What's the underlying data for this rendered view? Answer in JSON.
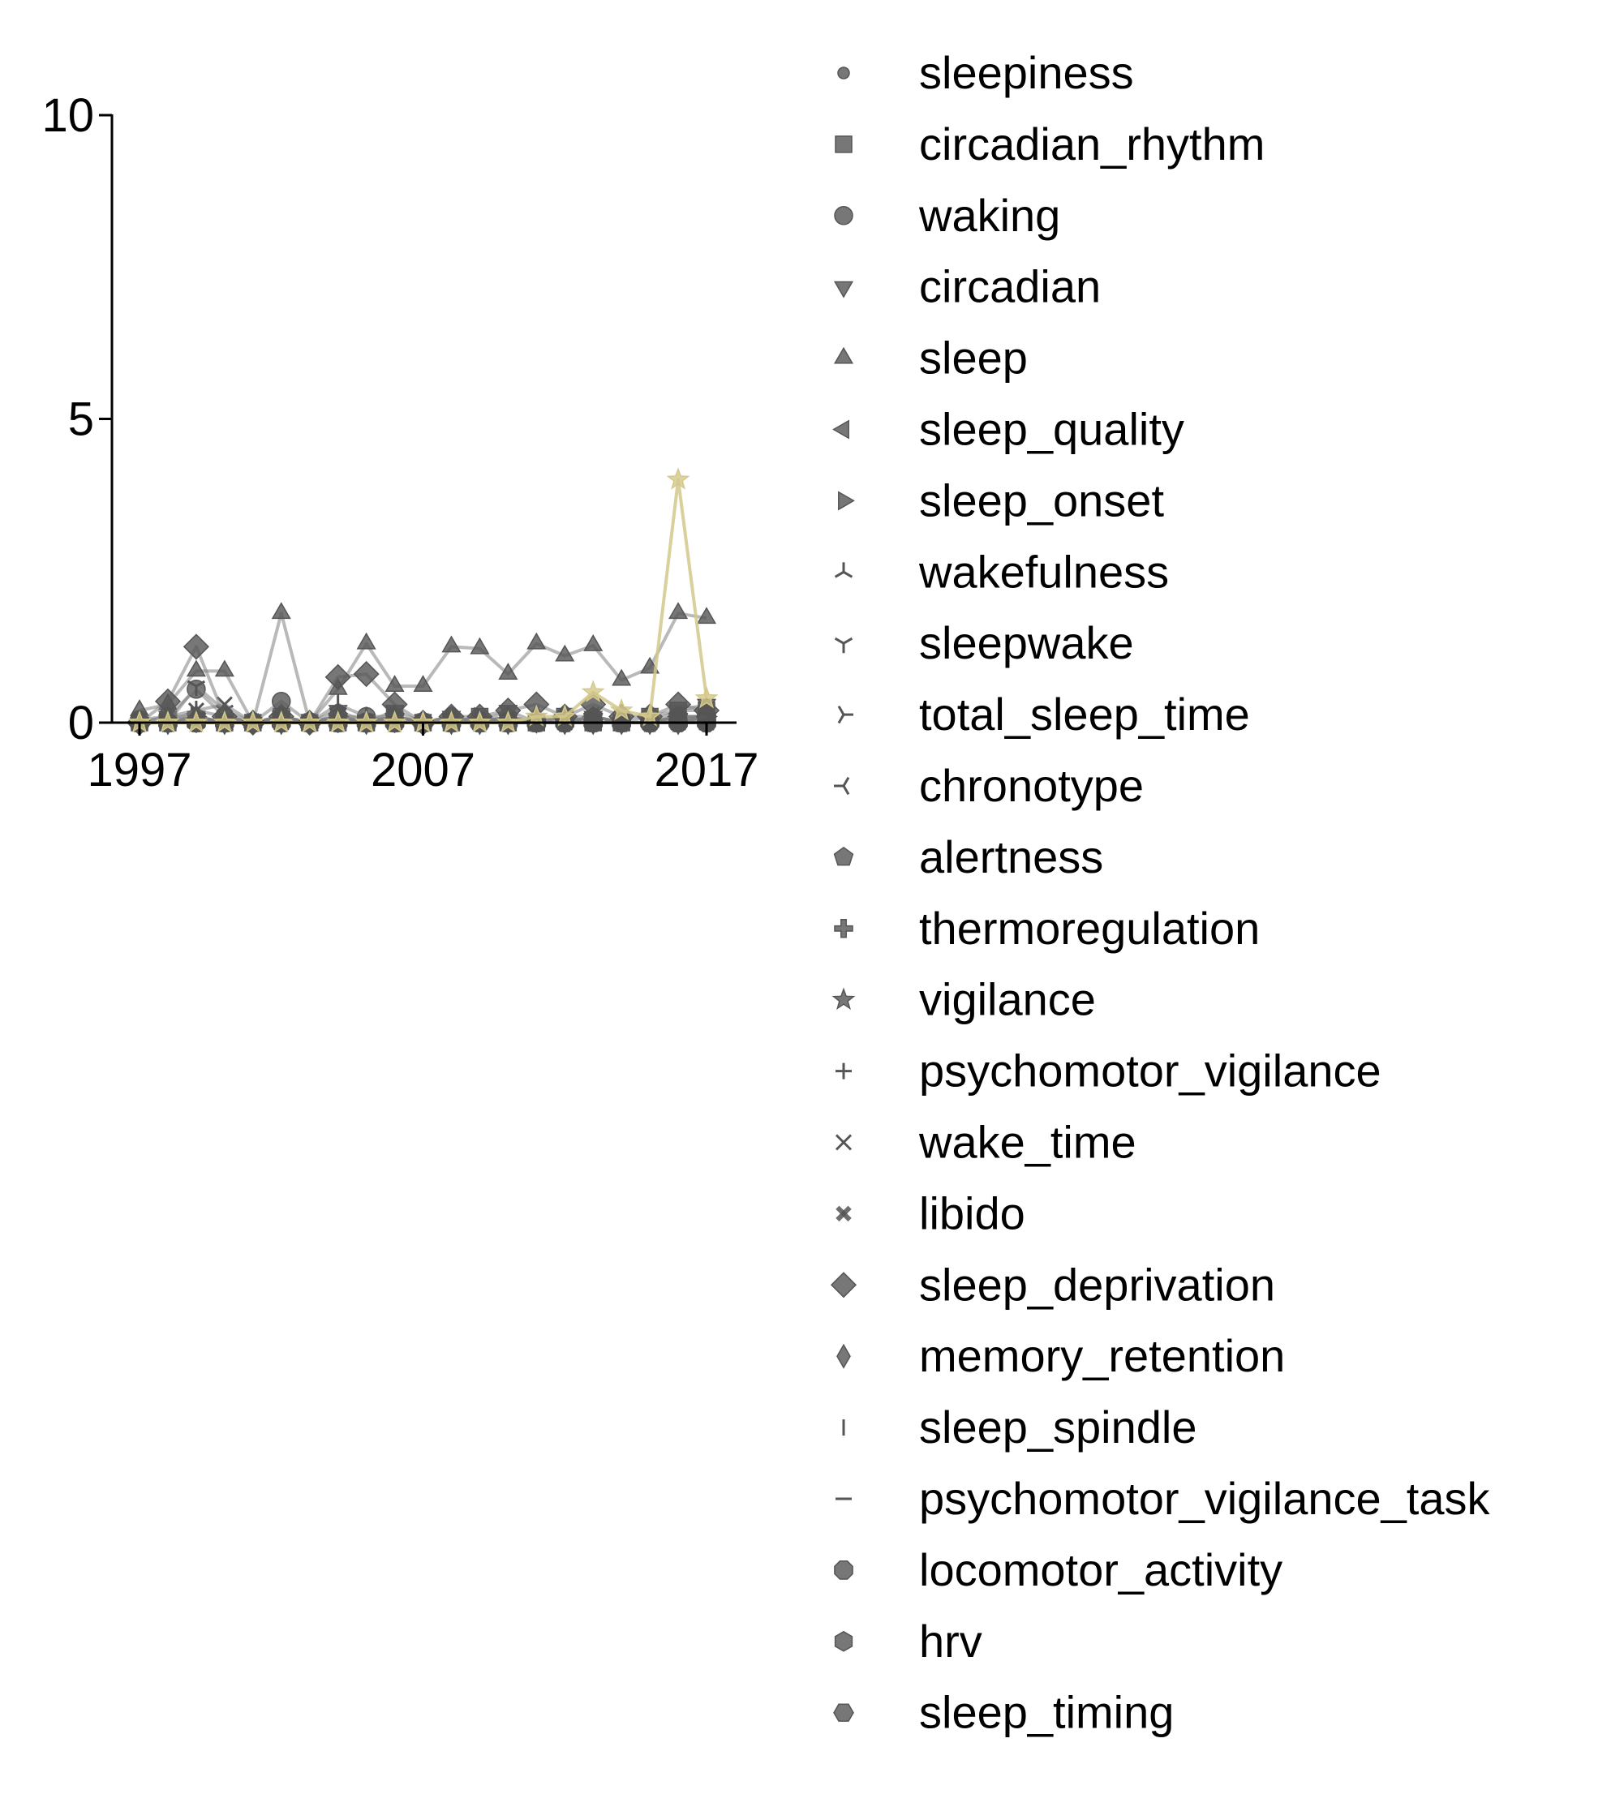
{
  "chart_data": {
    "type": "line",
    "title": "",
    "xlabel": "",
    "ylabel": "",
    "xlim": [
      1996,
      2018
    ],
    "ylim": [
      0,
      10
    ],
    "xticks": [
      1997,
      2007,
      2017
    ],
    "yticks": [
      0,
      5,
      10
    ],
    "grid": false,
    "legend_position": "right",
    "base_color": "#808080",
    "highlight_color": "#d4c88a",
    "years": [
      1997,
      1998,
      1999,
      2000,
      2001,
      2002,
      2003,
      2004,
      2005,
      2006,
      2007,
      2008,
      2009,
      2010,
      2011,
      2012,
      2013,
      2014,
      2015,
      2016,
      2017
    ],
    "series": [
      {
        "name": "sleepiness",
        "marker": "point",
        "values": [
          0,
          0,
          0.1,
          0,
          0,
          0,
          0,
          0.1,
          0,
          0,
          0,
          0,
          0,
          0.1,
          0,
          0,
          0.1,
          0,
          0,
          0,
          0.1
        ]
      },
      {
        "name": "circadian_rhythm",
        "marker": "square",
        "values": [
          0,
          0,
          0.05,
          0,
          0,
          0.1,
          0,
          0,
          0,
          0.1,
          0,
          0,
          0.1,
          0,
          0,
          0.1,
          0,
          0,
          0.1,
          0.2,
          0.2
        ]
      },
      {
        "name": "waking",
        "marker": "circle",
        "values": [
          0.05,
          0.1,
          0.55,
          0.1,
          0,
          0.35,
          0,
          0.1,
          0.1,
          0,
          0,
          0,
          0,
          0,
          0,
          0,
          0,
          0,
          0,
          0.05,
          0.1
        ]
      },
      {
        "name": "circadian",
        "marker": "triangle_down",
        "values": [
          0,
          0.1,
          0.1,
          0,
          0,
          0.1,
          0,
          0.2,
          0,
          0.2,
          0,
          0.1,
          0,
          0.2,
          0,
          0,
          0.1,
          0,
          0,
          0.2,
          0.3
        ]
      },
      {
        "name": "sleep",
        "marker": "triangle_up",
        "values": [
          0.2,
          0.3,
          0.85,
          0.85,
          0,
          1.8,
          0,
          0.55,
          1.3,
          0.6,
          0.6,
          1.25,
          1.22,
          0.8,
          1.3,
          1.1,
          1.27,
          0.7,
          0.9,
          1.8,
          1.72
        ]
      },
      {
        "name": "sleep_quality",
        "marker": "triangle_left",
        "values": [
          0,
          0,
          0,
          0,
          0,
          0,
          0,
          0,
          0,
          0,
          0,
          0,
          0,
          0,
          0,
          0,
          0.1,
          0,
          0,
          0.1,
          0.1
        ]
      },
      {
        "name": "sleep_onset",
        "marker": "triangle_right",
        "values": [
          0,
          0,
          0.1,
          0,
          0,
          0,
          0,
          0.1,
          0,
          0,
          0,
          0,
          0.1,
          0,
          0,
          0,
          0,
          0,
          0,
          0,
          0.1
        ]
      },
      {
        "name": "wakefulness",
        "marker": "tri_down",
        "values": [
          0,
          0.1,
          0.2,
          0.1,
          0,
          0.1,
          0,
          0.3,
          0.1,
          0.1,
          0,
          0,
          0,
          0.1,
          0,
          0,
          0.1,
          0,
          0,
          0.1,
          0.1
        ]
      },
      {
        "name": "sleepwake",
        "marker": "tri_up",
        "values": [
          0,
          0,
          0.6,
          0.2,
          0,
          0,
          0,
          0,
          0,
          0.1,
          0,
          0,
          0,
          0,
          0,
          0,
          0,
          0,
          0,
          0.1,
          0
        ]
      },
      {
        "name": "total_sleep_time",
        "marker": "tri_left",
        "values": [
          0,
          0,
          0,
          0,
          0,
          0,
          0,
          0,
          0,
          0,
          0,
          0,
          0,
          0,
          0,
          0,
          0,
          0,
          0,
          0,
          0.1
        ]
      },
      {
        "name": "chronotype",
        "marker": "tri_right",
        "values": [
          0,
          0,
          0,
          0,
          0,
          0,
          0,
          0,
          0,
          0,
          0,
          0,
          0,
          0,
          0,
          0,
          0,
          0,
          0,
          0.1,
          0.1
        ]
      },
      {
        "name": "alertness",
        "marker": "pentagon",
        "values": [
          0,
          0,
          0.1,
          0,
          0,
          0.1,
          0,
          0.1,
          0,
          0.1,
          0,
          0.1,
          0,
          0.1,
          0,
          0.1,
          0.1,
          0,
          0,
          0.1,
          0.1
        ]
      },
      {
        "name": "thermoregulation",
        "marker": "plus_filled",
        "values": [
          0,
          0,
          0,
          0,
          0,
          0,
          0,
          0,
          0,
          0,
          0,
          0,
          0,
          0,
          0,
          0,
          0,
          0,
          0,
          0,
          0
        ]
      },
      {
        "name": "vigilance",
        "marker": "star",
        "values": [
          0,
          0,
          0,
          0,
          0,
          0,
          0,
          0,
          0,
          0,
          0,
          0,
          0,
          0,
          0.1,
          0.1,
          0.5,
          0.2,
          0.1,
          4.0,
          0.4
        ]
      },
      {
        "name": "psychomotor_vigilance",
        "marker": "plus",
        "values": [
          0,
          0,
          0,
          0,
          0,
          0,
          0,
          0,
          0,
          0,
          0,
          0,
          0,
          0,
          0,
          0,
          0,
          0,
          0,
          0,
          0
        ]
      },
      {
        "name": "wake_time",
        "marker": "x",
        "values": [
          0,
          0,
          0.2,
          0.3,
          0,
          0,
          0,
          0.1,
          0,
          0,
          0,
          0,
          0,
          0,
          0,
          0,
          0,
          0,
          0,
          0,
          0
        ]
      },
      {
        "name": "libido",
        "marker": "x_filled",
        "values": [
          0,
          0,
          0,
          0,
          0,
          0,
          0,
          0,
          0,
          0,
          0,
          0,
          0,
          0,
          0,
          0,
          0,
          0,
          0,
          0,
          0
        ]
      },
      {
        "name": "sleep_deprivation",
        "marker": "diamond",
        "values": [
          0,
          0.35,
          1.25,
          0.1,
          0,
          0.1,
          0,
          0.75,
          0.8,
          0.3,
          0,
          0.1,
          0.1,
          0.2,
          0.3,
          0.1,
          0.3,
          0.1,
          0.1,
          0.3,
          0.2
        ]
      },
      {
        "name": "memory_retention",
        "marker": "thin_diamond",
        "values": [
          0,
          0,
          0.1,
          0,
          0,
          0,
          0,
          0.1,
          0,
          0.1,
          0,
          0,
          0,
          0,
          0.1,
          0,
          0,
          0,
          0,
          0,
          0
        ]
      },
      {
        "name": "sleep_spindle",
        "marker": "vline",
        "values": [
          0,
          0,
          0,
          0,
          0,
          0,
          0,
          0,
          0,
          0,
          0,
          0,
          0,
          0,
          0,
          0,
          0,
          0,
          0,
          0,
          0
        ]
      },
      {
        "name": "psychomotor_vigilance_task",
        "marker": "hline",
        "values": [
          0,
          0,
          0,
          0,
          0,
          0,
          0,
          0,
          0,
          0,
          0,
          0,
          0,
          0,
          0,
          0,
          0,
          0,
          0,
          0,
          0
        ]
      },
      {
        "name": "locomotor_activity",
        "marker": "octagon",
        "values": [
          0,
          0,
          0,
          0,
          0,
          0,
          0,
          0,
          0,
          0,
          0,
          0,
          0,
          0,
          0,
          0,
          0,
          0,
          0,
          0,
          0
        ]
      },
      {
        "name": "hrv",
        "marker": "hexagon",
        "values": [
          0,
          0,
          0,
          0,
          0,
          0,
          0,
          0,
          0,
          0,
          0,
          0,
          0,
          0,
          0,
          0,
          0,
          0,
          0,
          0,
          0
        ]
      },
      {
        "name": "sleep_timing",
        "marker": "hexagon2",
        "values": [
          0,
          0,
          0,
          0,
          0,
          0,
          0,
          0,
          0,
          0,
          0,
          0,
          0,
          0,
          0,
          0,
          0,
          0,
          0,
          0,
          0.1
        ]
      }
    ],
    "highlight_series": "vigilance"
  }
}
